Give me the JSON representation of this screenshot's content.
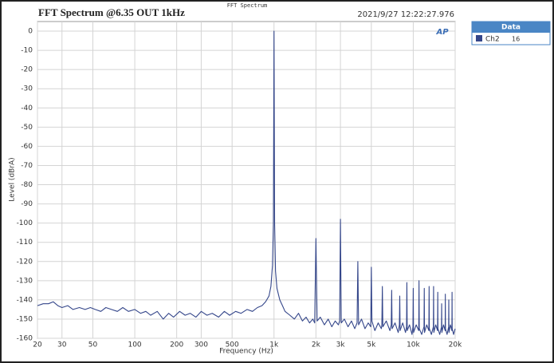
{
  "chart_data": {
    "type": "line",
    "header": "FFT Spectrum",
    "title": "FFT Spectrum @6.35 OUT 1kHz",
    "timestamp": "2021/9/27 12:22:27.976",
    "logo": "AP",
    "x_label": "Frequency (Hz)",
    "y_label": "Level (dBrA)",
    "legend_title": "Data",
    "legend_note": "16",
    "xscale": "log",
    "grid": true,
    "xlim": [
      20,
      20000
    ],
    "ylim": [
      -160,
      5
    ],
    "xticks": [
      20,
      30,
      50,
      100,
      200,
      300,
      500,
      {
        "value": 1000,
        "label": "1k"
      },
      {
        "value": 2000,
        "label": "2k"
      },
      {
        "value": 3000,
        "label": "3k"
      },
      {
        "value": 5000,
        "label": "5k"
      },
      {
        "value": 10000,
        "label": "10k"
      },
      {
        "value": 20000,
        "label": "20k"
      }
    ],
    "yticks": [
      0,
      -10,
      -20,
      -30,
      -40,
      -50,
      -60,
      -70,
      -80,
      -90,
      -100,
      -110,
      -120,
      -130,
      -140,
      -150,
      -160
    ],
    "x": [
      20,
      22,
      24,
      26,
      28,
      30,
      33,
      36,
      40,
      44,
      48,
      52,
      57,
      62,
      68,
      75,
      82,
      90,
      100,
      110,
      120,
      130,
      145,
      160,
      175,
      190,
      210,
      230,
      250,
      275,
      300,
      330,
      360,
      400,
      440,
      480,
      530,
      580,
      640,
      700,
      760,
      820,
      870,
      920,
      950,
      975,
      990,
      1000,
      1010,
      1025,
      1050,
      1100,
      1150,
      1200,
      1300,
      1400,
      1500,
      1600,
      1700,
      1800,
      1900,
      1960,
      2000,
      2040,
      2150,
      2300,
      2450,
      2600,
      2750,
      2900,
      2960,
      3000,
      3040,
      3200,
      3400,
      3600,
      3800,
      3950,
      4000,
      4050,
      4250,
      4500,
      4750,
      4950,
      5000,
      5050,
      5300,
      5600,
      5900,
      5950,
      6000,
      6050,
      6400,
      6800,
      6950,
      7000,
      7050,
      7400,
      7800,
      7950,
      8000,
      8050,
      8400,
      8800,
      8950,
      9000,
      9050,
      9400,
      9800,
      9950,
      10000,
      10050,
      10500,
      10950,
      11000,
      11050,
      11500,
      11950,
      12000,
      12050,
      12500,
      12950,
      13000,
      13050,
      13500,
      13950,
      14000,
      14050,
      14500,
      14950,
      15000,
      15050,
      15500,
      15950,
      16000,
      16050,
      16500,
      16950,
      17000,
      17050,
      17500,
      17950,
      18000,
      18050,
      18500,
      18950,
      19000,
      19050,
      19500,
      20000
    ],
    "series": [
      {
        "name": "Ch2",
        "color": "#34468a",
        "values": [
          -143,
          -142,
          -142,
          -141,
          -143,
          -144,
          -143,
          -145,
          -144,
          -145,
          -144,
          -145,
          -146,
          -144,
          -145,
          -146,
          -144,
          -146,
          -145,
          -147,
          -146,
          -148,
          -146,
          -150,
          -147,
          -149,
          -146,
          -148,
          -147,
          -149,
          -146,
          -148,
          -147,
          -149,
          -146,
          -148,
          -146,
          -147,
          -145,
          -146,
          -144,
          -143,
          -141,
          -138,
          -133,
          -122,
          -100,
          0,
          -100,
          -125,
          -134,
          -140,
          -143,
          -146,
          -148,
          -150,
          -147,
          -151,
          -149,
          -152,
          -150,
          -152,
          -108,
          -151,
          -149,
          -153,
          -150,
          -154,
          -151,
          -153,
          -151,
          -98,
          -152,
          -150,
          -154,
          -151,
          -155,
          -152,
          -120,
          -153,
          -150,
          -155,
          -152,
          -154,
          -123,
          -151,
          -156,
          -152,
          -155,
          -153,
          -133,
          -154,
          -151,
          -156,
          -153,
          -135,
          -155,
          -152,
          -157,
          -153,
          -138,
          -156,
          -152,
          -157,
          -154,
          -131,
          -156,
          -153,
          -158,
          -154,
          -134,
          -157,
          -153,
          -156,
          -130,
          -155,
          -158,
          -154,
          -134,
          -157,
          -153,
          -156,
          -133,
          -155,
          -158,
          -154,
          -133,
          -157,
          -153,
          -156,
          -136,
          -155,
          -158,
          -154,
          -142,
          -157,
          -153,
          -156,
          -137,
          -155,
          -158,
          -154,
          -140,
          -157,
          -153,
          -156,
          -136,
          -155,
          -158,
          -155
        ]
      }
    ]
  }
}
